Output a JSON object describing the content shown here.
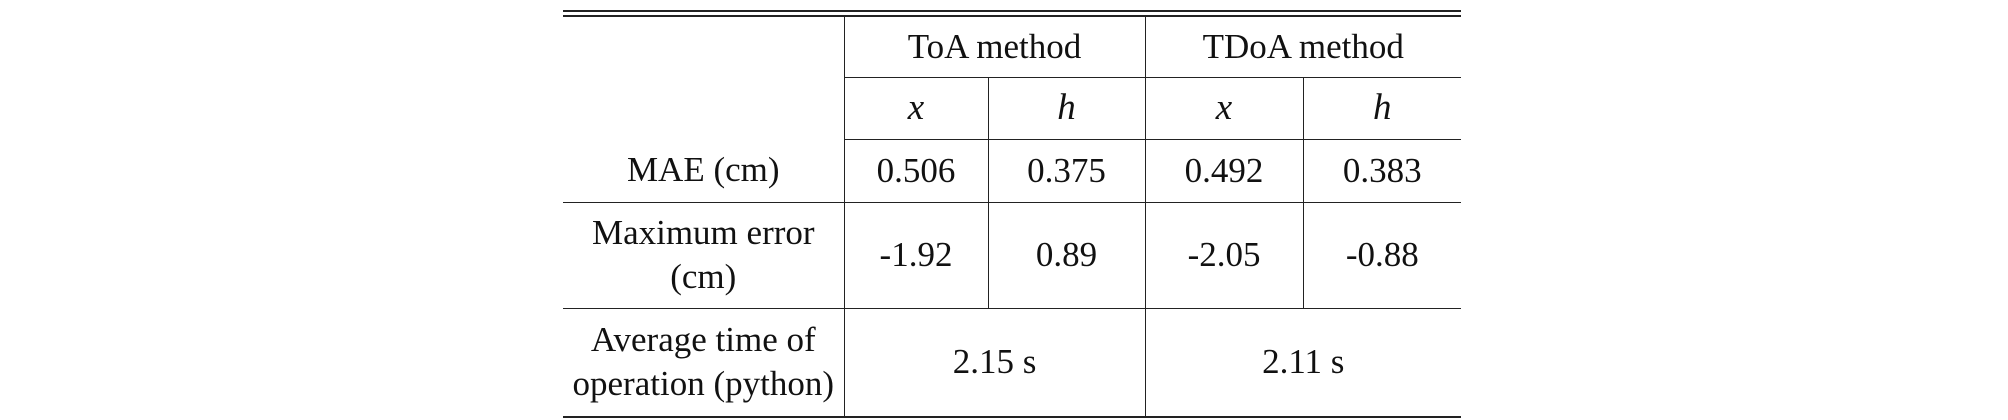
{
  "table": {
    "groups": [
      {
        "label": "ToA method"
      },
      {
        "label": "TDoA method"
      }
    ],
    "subheaders": [
      "x",
      "h",
      "x",
      "h"
    ],
    "rows": [
      {
        "label": "MAE (cm)",
        "cells": [
          "0.506",
          "0.375",
          "0.492",
          "0.383"
        ]
      },
      {
        "label_line1": "Maximum error",
        "label_line2": "(cm)",
        "cells": [
          "-1.92",
          "0.89",
          "-2.05",
          "-0.88"
        ]
      },
      {
        "label_line1": "Average time of",
        "label_line2": "operation (python)",
        "merged_cells": [
          "2.15 s",
          "2.11 s"
        ]
      }
    ]
  }
}
